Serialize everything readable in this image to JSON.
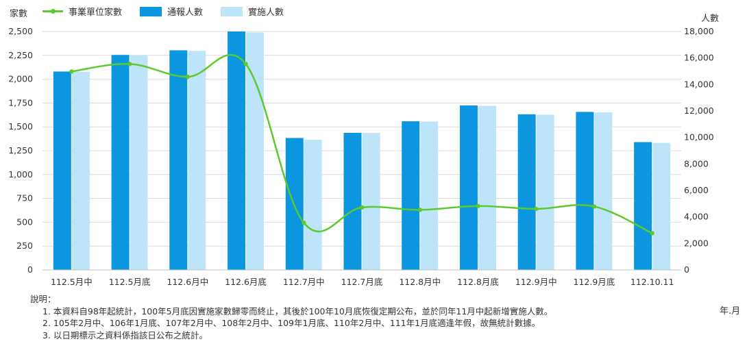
{
  "chart_data": {
    "type": "bar+line",
    "left_axis_label": "家數",
    "right_axis_label": "人數",
    "x_unit": "年.月",
    "categories": [
      "112.5月中",
      "112.5月底",
      "112.6月中",
      "112.6月底",
      "112.7月中",
      "112.7月底",
      "112.8月中",
      "112.8月底",
      "112.9月中",
      "112.9月底",
      "112.10.11"
    ],
    "left_ylim": [
      0,
      2500
    ],
    "left_ticks": [
      "0",
      "250",
      "500",
      "750",
      "1,000",
      "1,250",
      "1,500",
      "1,750",
      "2,000",
      "2,250",
      "2,500"
    ],
    "right_ylim": [
      0,
      18000
    ],
    "right_ticks": [
      "0",
      "2,000",
      "4,000",
      "6,000",
      "8,000",
      "10,000",
      "12,000",
      "14,000",
      "16,000",
      "18,000"
    ],
    "grid": true,
    "legend_position": "top-left",
    "series": [
      {
        "name": "事業單位家數",
        "kind": "line",
        "axis": "left",
        "color": "#5cc92c",
        "values": [
          2080,
          2160,
          2025,
          2160,
          495,
          655,
          630,
          670,
          640,
          665,
          385
        ]
      },
      {
        "name": "通報人數",
        "kind": "bar",
        "axis": "right",
        "color": "#0b96df",
        "values": [
          14980,
          16230,
          16580,
          18000,
          9960,
          10350,
          11220,
          12420,
          11750,
          11930,
          9650
        ]
      },
      {
        "name": "實施人數",
        "kind": "bar",
        "axis": "right",
        "color": "#bde4f8",
        "values": [
          14950,
          16200,
          16540,
          17930,
          9830,
          10340,
          11200,
          12380,
          11720,
          11890,
          9590
        ]
      }
    ]
  },
  "notes": {
    "title": "說明：",
    "items": [
      "1. 本資料自98年起統計，100年5月底因實施家數歸零而終止，其後於100年10月底恢復定期公布，並於同年11月中起新增實施人數。",
      "2. 105年2月中、106年1月底、107年2月中、108年2月中、109年1月底、110年2月中、111年1月底適逢年假，故無統計數據。",
      "3. 以日期標示之資料係指該日公布之統計。"
    ]
  }
}
